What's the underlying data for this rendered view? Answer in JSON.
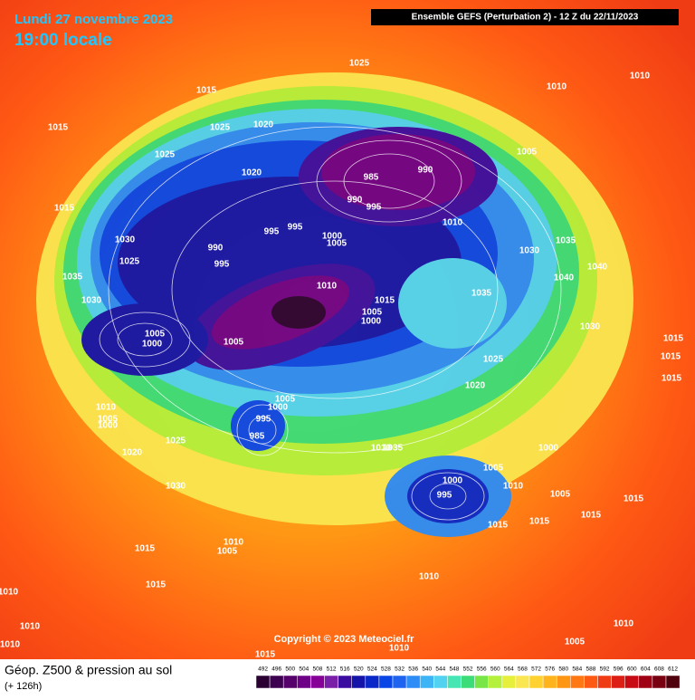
{
  "header": {
    "date": "Lundi 27 novembre 2023",
    "time": "19:00 locale",
    "run": "Ensemble GEFS  (Perturbation 2)  -  12 Z du 22/11/2023",
    "copyright": "Copyright © 2023 Meteociel.fr"
  },
  "footer": {
    "caption": "Géop. Z500 & pression au sol",
    "lead": "(+ 126h)"
  },
  "legend": {
    "values": [
      492,
      496,
      500,
      504,
      508,
      512,
      516,
      520,
      524,
      528,
      532,
      536,
      540,
      544,
      548,
      552,
      556,
      560,
      564,
      568,
      572,
      576,
      580,
      584,
      588,
      592,
      596,
      600,
      604,
      608,
      612
    ],
    "colors": [
      "#2a0033",
      "#3d0050",
      "#55006b",
      "#6e0087",
      "#860098",
      "#7a1fa8",
      "#3b0ca0",
      "#1414a8",
      "#0a28c8",
      "#0a46e6",
      "#1e64f0",
      "#2d8cf5",
      "#3cb4f5",
      "#50d2f0",
      "#46e6b4",
      "#3cdc78",
      "#78e646",
      "#b4f03c",
      "#e6f03c",
      "#fae650",
      "#ffd232",
      "#ffb41e",
      "#ff9614",
      "#ff7814",
      "#ff5a14",
      "#f03c14",
      "#dc1e14",
      "#c80a14",
      "#a00014",
      "#780010",
      "#50000c"
    ]
  },
  "isobars": [
    1025,
    1015,
    1010,
    1010,
    1015,
    1025,
    1020,
    1025,
    1005,
    990,
    985,
    1020,
    990,
    995,
    1015,
    995,
    995,
    1010,
    1000,
    1005,
    1030,
    990,
    1030,
    1035,
    1025,
    995,
    1035,
    1010,
    1035,
    1040,
    1040,
    1030,
    1015,
    1005,
    1000,
    1005,
    1000,
    1005,
    1030,
    1015,
    1025,
    1015,
    1015,
    1020,
    1005,
    1000,
    1010,
    995,
    1005,
    1000,
    985,
    1025,
    1010,
    1035,
    1000,
    1020,
    1005,
    1000,
    1010,
    995,
    1005,
    1015,
    1030,
    1015,
    1015,
    1015,
    1010,
    1005,
    1015,
    1015,
    1010,
    1010,
    1010,
    1010,
    1005,
    1010,
    1010,
    1015
  ]
}
